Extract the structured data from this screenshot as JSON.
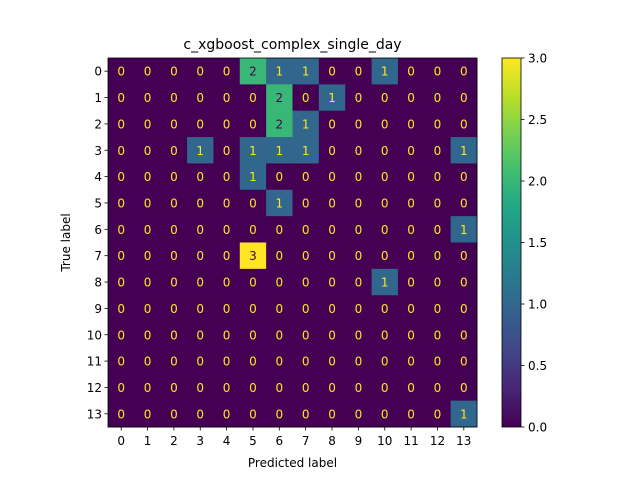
{
  "chart_data": {
    "type": "heatmap",
    "title": "c_xgboost_complex_single_day",
    "xlabel": "Predicted label",
    "ylabel": "True label",
    "x_categories": [
      "0",
      "1",
      "2",
      "3",
      "4",
      "5",
      "6",
      "7",
      "8",
      "9",
      "10",
      "11",
      "12",
      "13"
    ],
    "y_categories": [
      "0",
      "1",
      "2",
      "3",
      "4",
      "5",
      "6",
      "7",
      "8",
      "9",
      "10",
      "11",
      "12",
      "13"
    ],
    "matrix": [
      [
        0,
        0,
        0,
        0,
        0,
        2,
        1,
        1,
        0,
        0,
        1,
        0,
        0,
        0
      ],
      [
        0,
        0,
        0,
        0,
        0,
        0,
        2,
        0,
        1,
        0,
        0,
        0,
        0,
        0
      ],
      [
        0,
        0,
        0,
        0,
        0,
        0,
        2,
        1,
        0,
        0,
        0,
        0,
        0,
        0
      ],
      [
        0,
        0,
        0,
        1,
        0,
        1,
        1,
        1,
        0,
        0,
        0,
        0,
        0,
        1
      ],
      [
        0,
        0,
        0,
        0,
        0,
        1,
        0,
        0,
        0,
        0,
        0,
        0,
        0,
        0
      ],
      [
        0,
        0,
        0,
        0,
        0,
        0,
        1,
        0,
        0,
        0,
        0,
        0,
        0,
        0
      ],
      [
        0,
        0,
        0,
        0,
        0,
        0,
        0,
        0,
        0,
        0,
        0,
        0,
        0,
        1
      ],
      [
        0,
        0,
        0,
        0,
        0,
        3,
        0,
        0,
        0,
        0,
        0,
        0,
        0,
        0
      ],
      [
        0,
        0,
        0,
        0,
        0,
        0,
        0,
        0,
        0,
        0,
        1,
        0,
        0,
        0
      ],
      [
        0,
        0,
        0,
        0,
        0,
        0,
        0,
        0,
        0,
        0,
        0,
        0,
        0,
        0
      ],
      [
        0,
        0,
        0,
        0,
        0,
        0,
        0,
        0,
        0,
        0,
        0,
        0,
        0,
        0
      ],
      [
        0,
        0,
        0,
        0,
        0,
        0,
        0,
        0,
        0,
        0,
        0,
        0,
        0,
        0
      ],
      [
        0,
        0,
        0,
        0,
        0,
        0,
        0,
        0,
        0,
        0,
        0,
        0,
        0,
        0
      ],
      [
        0,
        0,
        0,
        0,
        0,
        0,
        0,
        0,
        0,
        0,
        0,
        0,
        0,
        1
      ]
    ],
    "colormap": "viridis",
    "vmin": 0,
    "vmax": 3,
    "colorbar_ticks": [
      "0.0",
      "0.5",
      "1.0",
      "1.5",
      "2.0",
      "2.5",
      "3.0"
    ],
    "colors": {
      "0": "#440154",
      "1": "#31688e",
      "2": "#35b779",
      "3": "#fde725",
      "text_on_dark": "#fde725",
      "text_on_light": "#440154"
    }
  }
}
